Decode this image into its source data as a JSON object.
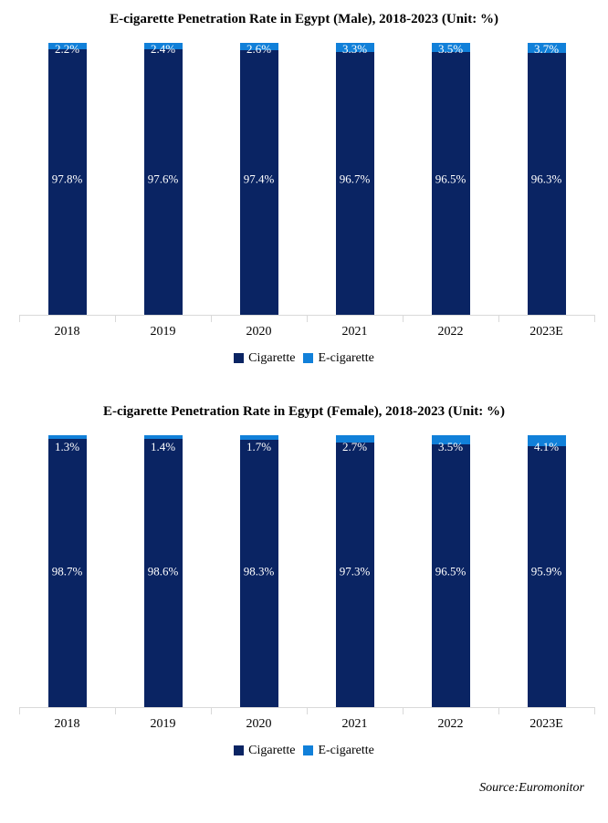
{
  "source": "Source:Euromonitor",
  "colors": {
    "cigarette": "#0a2463",
    "ecigarette": "#1180d9",
    "axis": "#d9d9d9"
  },
  "chart_data": [
    {
      "type": "bar",
      "stacked": true,
      "percent_stacked": true,
      "title": "E-cigarette Penetration Rate in Egypt (Male), 2018-2023 (Unit: %)",
      "categories": [
        "2018",
        "2019",
        "2020",
        "2021",
        "2022",
        "2023E"
      ],
      "series": [
        {
          "name": "Cigarette",
          "color": "#0a2463",
          "values": [
            97.8,
            97.6,
            97.4,
            96.7,
            96.5,
            96.3
          ]
        },
        {
          "name": "E-cigarette",
          "color": "#1180d9",
          "values": [
            2.2,
            2.4,
            2.6,
            3.3,
            3.5,
            3.7
          ]
        }
      ],
      "xlabel": "",
      "ylabel": "",
      "ylim": [
        0,
        100
      ],
      "grid": false,
      "value_labels": true,
      "legend_position": "bottom"
    },
    {
      "type": "bar",
      "stacked": true,
      "percent_stacked": true,
      "title": "E-cigarette Penetration Rate in Egypt (Female), 2018-2023 (Unit: %)",
      "categories": [
        "2018",
        "2019",
        "2020",
        "2021",
        "2022",
        "2023E"
      ],
      "series": [
        {
          "name": "Cigarette",
          "color": "#0a2463",
          "values": [
            98.7,
            98.6,
            98.3,
            97.3,
            96.5,
            95.9
          ]
        },
        {
          "name": "E-cigarette",
          "color": "#1180d9",
          "values": [
            1.3,
            1.4,
            1.7,
            2.7,
            3.5,
            4.1
          ]
        }
      ],
      "xlabel": "",
      "ylabel": "",
      "ylim": [
        0,
        100
      ],
      "grid": false,
      "value_labels": true,
      "legend_position": "bottom"
    }
  ]
}
